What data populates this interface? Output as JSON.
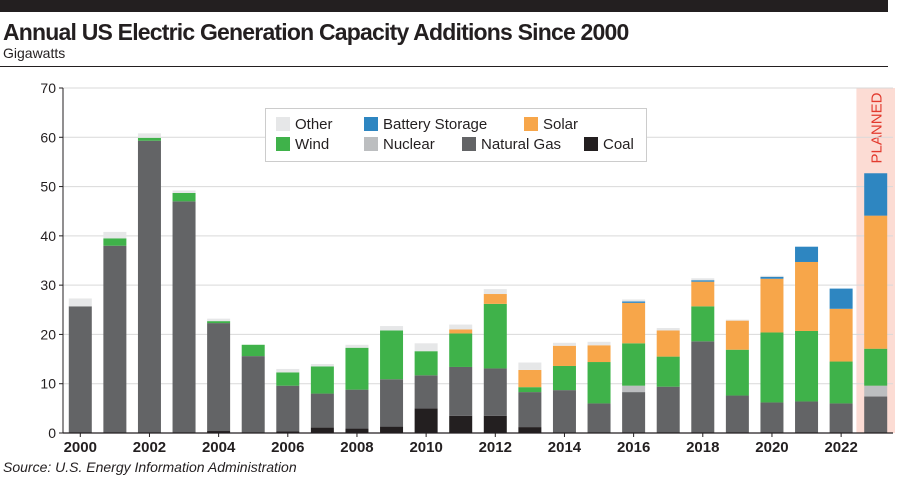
{
  "title": "Annual US Electric Generation Capacity Additions Since 2000",
  "subtitle": "Gigawatts",
  "source": "Source: U.S. Energy Information Administration",
  "colors": {
    "Coal": "#231f20",
    "Natural Gas": "#636466",
    "Nuclear": "#bcbec0",
    "Wind": "#3fb24a",
    "Solar": "#f7a64a",
    "Battery Storage": "#2e86c1",
    "Other": "#e6e7e8",
    "planned_band": "#fcdcd4",
    "planned_text": "#e23a2e"
  },
  "legend": {
    "row1": [
      "Other",
      "Battery Storage",
      "Solar"
    ],
    "row2": [
      "Wind",
      "Nuclear",
      "Natural Gas",
      "Coal"
    ]
  },
  "chart_data": {
    "type": "bar",
    "stacked": true,
    "title": "Annual US Electric Generation Capacity Additions Since 2000",
    "ylabel": "Gigawatts",
    "xlabel": "",
    "ylim": [
      0,
      70
    ],
    "yticks": [
      0,
      10,
      20,
      30,
      40,
      50,
      60,
      70
    ],
    "grid": true,
    "legend_position": "top-center",
    "planned_label": "PLANNED",
    "categories": [
      "2000",
      "2001",
      "2002",
      "2003",
      "2004",
      "2005",
      "2006",
      "2007",
      "2008",
      "2009",
      "2010",
      "2011",
      "2012",
      "2013",
      "2014",
      "2015",
      "2016",
      "2017",
      "2018",
      "2019",
      "2020",
      "2021",
      "2022",
      "2023"
    ],
    "xtick_labels": [
      "2000",
      "2002",
      "2004",
      "2006",
      "2008",
      "2010",
      "2012",
      "2014",
      "2016",
      "2018",
      "2020",
      "2022"
    ],
    "planned_categories": [
      "2023"
    ],
    "series": [
      {
        "name": "Coal",
        "values": [
          0,
          0,
          0,
          0,
          0.4,
          0,
          0.3,
          1.1,
          0.9,
          1.3,
          5.0,
          3.5,
          3.5,
          1.2,
          0,
          0,
          0,
          0,
          0,
          0,
          0,
          0,
          0,
          0
        ]
      },
      {
        "name": "Natural Gas",
        "values": [
          25.7,
          38.0,
          59.3,
          47.0,
          21.9,
          15.6,
          9.3,
          6.9,
          7.9,
          9.6,
          6.7,
          9.9,
          9.6,
          7.1,
          8.7,
          6.0,
          8.3,
          9.4,
          18.6,
          7.6,
          6.2,
          6.4,
          6.0,
          7.4
        ]
      },
      {
        "name": "Nuclear",
        "values": [
          0,
          0,
          0,
          0,
          0,
          0,
          0,
          0,
          0,
          0,
          0,
          0,
          0,
          0,
          0,
          0,
          1.3,
          0,
          0,
          0,
          0,
          0,
          0,
          2.2
        ]
      },
      {
        "name": "Wind",
        "values": [
          0,
          1.5,
          0.6,
          1.7,
          0.4,
          2.3,
          2.7,
          5.5,
          8.5,
          9.9,
          4.9,
          6.8,
          13.1,
          1.0,
          4.9,
          8.4,
          8.6,
          6.1,
          7.1,
          9.3,
          14.2,
          14.3,
          8.5,
          7.5
        ]
      },
      {
        "name": "Solar",
        "values": [
          0,
          0,
          0,
          0,
          0,
          0,
          0,
          0,
          0,
          0,
          0,
          0.8,
          2.0,
          3.5,
          4.1,
          3.4,
          8.2,
          5.3,
          5.0,
          5.9,
          10.9,
          14.0,
          10.7,
          27.0
        ]
      },
      {
        "name": "Battery Storage",
        "values": [
          0,
          0,
          0,
          0,
          0,
          0,
          0,
          0,
          0,
          0,
          0,
          0,
          0,
          0,
          0,
          0,
          0.3,
          0,
          0.3,
          0,
          0.4,
          3.1,
          4.1,
          8.6
        ]
      },
      {
        "name": "Other",
        "values": [
          1.6,
          1.3,
          0.9,
          0.5,
          0.5,
          0,
          0.7,
          0.5,
          0.6,
          0.9,
          1.6,
          1.0,
          1.0,
          1.5,
          0.6,
          0.7,
          0.4,
          0.5,
          0.4,
          0.2,
          0.2,
          0,
          0,
          0
        ]
      }
    ]
  }
}
